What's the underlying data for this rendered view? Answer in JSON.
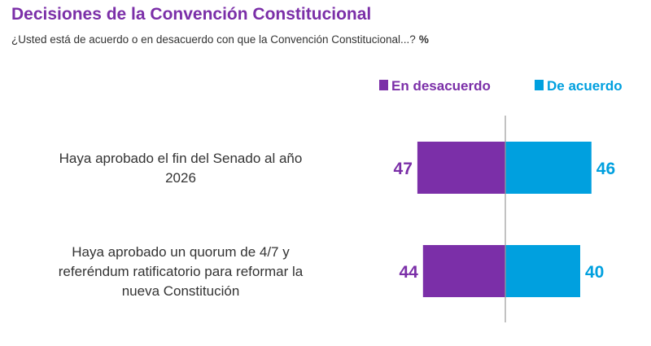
{
  "header": {
    "title": "Decisiones de la Convención Constitucional",
    "subtitle": "¿Usted está de acuerdo o en desacuerdo con que la Convención Constitucional...?",
    "unit": "%"
  },
  "colors": {
    "disagree": "#7b2fa8",
    "agree": "#00a0df",
    "axis": "#999999",
    "category_text": "#333333"
  },
  "chart_data": {
    "type": "bar",
    "orientation": "horizontal-diverging",
    "categories": [
      [
        "Haya aprobado el fin del Senado al año",
        "2026"
      ],
      [
        "Haya aprobado un quorum de 4/7 y",
        "referéndum ratificatorio para reformar la",
        "nueva Constitución"
      ]
    ],
    "series": [
      {
        "name": "En desacuerdo",
        "values": [
          47,
          44
        ],
        "side": "left"
      },
      {
        "name": "De acuerdo",
        "values": [
          46,
          40
        ],
        "side": "right"
      }
    ],
    "legend_position": "top-right",
    "grid": false
  }
}
